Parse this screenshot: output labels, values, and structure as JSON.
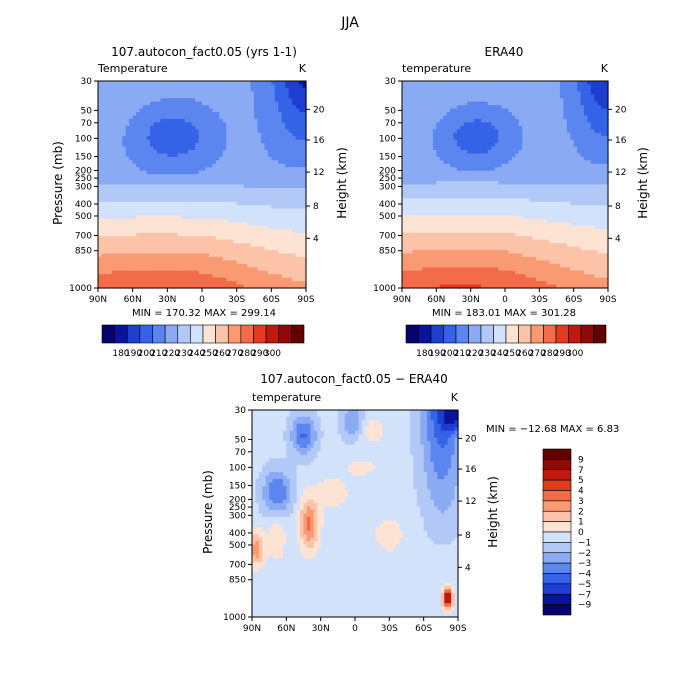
{
  "figure_title": "JJA",
  "colors": {
    "t_scale": [
      "#08006e",
      "#0a139e",
      "#1c3fd0",
      "#3563e8",
      "#5b86ef",
      "#8aaaf3",
      "#b2c9f7",
      "#d3e2fb",
      "#fde3d3",
      "#fcc3a8",
      "#f99a72",
      "#f36b48",
      "#e23a1f",
      "#bf1a0d",
      "#8f0a06",
      "#600000"
    ],
    "d_scale": [
      "#08006e",
      "#0a139e",
      "#1c3fd0",
      "#3563e8",
      "#5b86ef",
      "#8aaaf3",
      "#b2c9f7",
      "#d3e2fb",
      "#fde3d3",
      "#fcc3a8",
      "#f99a72",
      "#f36b48",
      "#e23a1f",
      "#bf1a0d",
      "#8f0a06",
      "#600000"
    ]
  },
  "chart_data": [
    {
      "type": "heatmap",
      "title": "107.autocon_fact0.05 (yrs 1-1)",
      "left_title": "Temperature",
      "units": "K",
      "ylabel": "Pressure (mb)",
      "y2label": "Height (km)",
      "x_ticks": [
        "90N",
        "60N",
        "30N",
        "0",
        "30S",
        "60S",
        "90S"
      ],
      "y_ticks": [
        "30",
        "50",
        "70",
        "100",
        "150",
        "200",
        "250",
        "300",
        "400",
        "500",
        "700",
        "850",
        "1000"
      ],
      "y2_ticks": [
        "20",
        "16",
        "12",
        "8",
        "4"
      ],
      "min": 170.32,
      "max": 299.14,
      "stats": "MIN = 170.32    MAX = 299.14",
      "colorbar_labels": [
        "180",
        "190",
        "200",
        "210",
        "220",
        "230",
        "240",
        "250",
        "260",
        "270",
        "280",
        "290",
        "300"
      ]
    },
    {
      "type": "heatmap",
      "title": "ERA40",
      "left_title": "temperature",
      "units": "K",
      "y2label": "Height (km)",
      "x_ticks": [
        "90N",
        "60N",
        "30N",
        "0",
        "30S",
        "60S",
        "90S"
      ],
      "y_ticks": [
        "30",
        "50",
        "70",
        "100",
        "150",
        "200",
        "250",
        "300",
        "400",
        "500",
        "700",
        "850",
        "1000"
      ],
      "y2_ticks": [
        "20",
        "16",
        "12",
        "8",
        "4"
      ],
      "min": 183.01,
      "max": 301.28,
      "stats": "MIN = 183.01    MAX = 301.28",
      "colorbar_labels": [
        "180",
        "190",
        "200",
        "210",
        "220",
        "230",
        "240",
        "250",
        "260",
        "270",
        "280",
        "290",
        "300"
      ]
    },
    {
      "type": "heatmap",
      "title": "107.autocon_fact0.05 − ERA40",
      "left_title": "temperature",
      "units": "K",
      "ylabel": "Pressure (mb)",
      "y2label": "Height (km)",
      "x_ticks": [
        "90N",
        "60N",
        "30N",
        "0",
        "30S",
        "60S",
        "90S"
      ],
      "y_ticks": [
        "30",
        "50",
        "70",
        "100",
        "150",
        "200",
        "250",
        "300",
        "400",
        "500",
        "700",
        "850",
        "1000"
      ],
      "y2_ticks": [
        "20",
        "16",
        "12",
        "8",
        "4"
      ],
      "min": -12.68,
      "max": 6.83,
      "stats": "MIN =  −12.68   MAX =    6.83",
      "colorbar_labels": [
        "9",
        "7",
        "5",
        "4",
        "3",
        "2",
        "1",
        "0",
        "−1",
        "−2",
        "−3",
        "−4",
        "−5",
        "−7",
        "−9"
      ]
    }
  ]
}
